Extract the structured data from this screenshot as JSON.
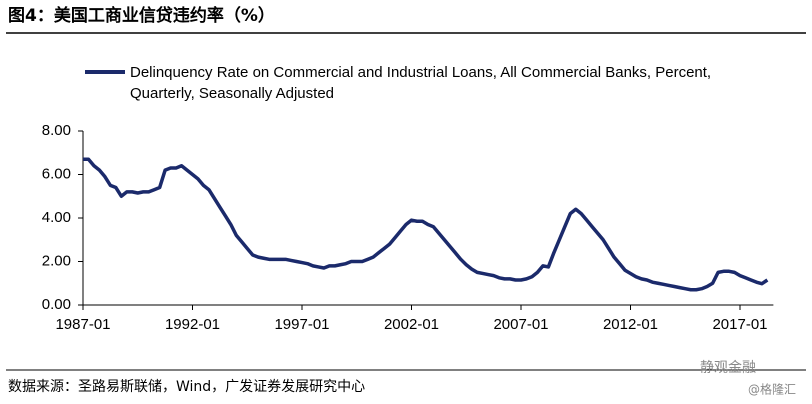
{
  "chart_data": {
    "type": "line",
    "title": "图4：美国工商业信贷违约率（%）",
    "categories": [
      "1987-01",
      null,
      null,
      null,
      null,
      null,
      null,
      null,
      null,
      null,
      null,
      null,
      null,
      null,
      null,
      null,
      null,
      null,
      null,
      null,
      "1992-01",
      null,
      null,
      null,
      null,
      null,
      null,
      null,
      null,
      null,
      null,
      null,
      null,
      null,
      null,
      null,
      null,
      null,
      null,
      null,
      "1997-01",
      null,
      null,
      null,
      null,
      null,
      null,
      null,
      null,
      null,
      null,
      null,
      null,
      null,
      null,
      null,
      null,
      null,
      null,
      null,
      "2002-01",
      null,
      null,
      null,
      null,
      null,
      null,
      null,
      null,
      null,
      null,
      null,
      null,
      null,
      null,
      null,
      null,
      null,
      null,
      null,
      "2007-01",
      null,
      null,
      null,
      null,
      null,
      null,
      null,
      null,
      null,
      null,
      null,
      null,
      null,
      null,
      null,
      null,
      null,
      null,
      null,
      "2012-01",
      null,
      null,
      null,
      null,
      null,
      null,
      null,
      null,
      null,
      null,
      null,
      null,
      null,
      null,
      null,
      null,
      null,
      null,
      null,
      "2017-01",
      null,
      null,
      null,
      null,
      null
    ],
    "series": [
      {
        "name": "Delinquency Rate on Commercial and Industrial Loans, All Commercial Banks, Percent, Quarterly, Seasonally Adjusted",
        "color": "#1b2a6b",
        "values": [
          6.7,
          6.7,
          6.4,
          6.2,
          5.9,
          5.5,
          5.4,
          5.0,
          5.2,
          5.2,
          5.15,
          5.2,
          5.2,
          5.3,
          5.4,
          6.2,
          6.3,
          6.3,
          6.4,
          6.2,
          6.0,
          5.8,
          5.5,
          5.3,
          4.9,
          4.5,
          4.1,
          3.7,
          3.2,
          2.9,
          2.6,
          2.3,
          2.2,
          2.15,
          2.1,
          2.1,
          2.1,
          2.1,
          2.05,
          2.0,
          1.95,
          1.9,
          1.8,
          1.75,
          1.7,
          1.8,
          1.8,
          1.85,
          1.9,
          2.0,
          2.0,
          2.0,
          2.1,
          2.2,
          2.4,
          2.6,
          2.8,
          3.1,
          3.4,
          3.7,
          3.9,
          3.85,
          3.85,
          3.7,
          3.6,
          3.3,
          3.0,
          2.7,
          2.4,
          2.1,
          1.85,
          1.65,
          1.5,
          1.45,
          1.4,
          1.35,
          1.25,
          1.2,
          1.2,
          1.15,
          1.15,
          1.2,
          1.3,
          1.5,
          1.8,
          1.75,
          2.4,
          3.0,
          3.6,
          4.2,
          4.4,
          4.2,
          3.9,
          3.6,
          3.3,
          3.0,
          2.6,
          2.2,
          1.9,
          1.6,
          1.45,
          1.3,
          1.2,
          1.15,
          1.05,
          1.0,
          0.95,
          0.9,
          0.85,
          0.8,
          0.75,
          0.7,
          0.7,
          0.75,
          0.85,
          1.0,
          1.5,
          1.55,
          1.55,
          1.5,
          1.35,
          1.25,
          1.15,
          1.05,
          0.98,
          1.15
        ]
      }
    ],
    "ylim": [
      0,
      8
    ],
    "yticks": [
      {
        "value": 0,
        "label": "0.00"
      },
      {
        "value": 2,
        "label": "2.00"
      },
      {
        "value": 4,
        "label": "4.00"
      },
      {
        "value": 6,
        "label": "6.00"
      },
      {
        "value": 8,
        "label": "8.00"
      }
    ],
    "source": "数据来源：圣路易斯联储，Wind，广发证券发展研究中心",
    "watermark": "静观金融",
    "watermark2": "@格隆汇"
  }
}
